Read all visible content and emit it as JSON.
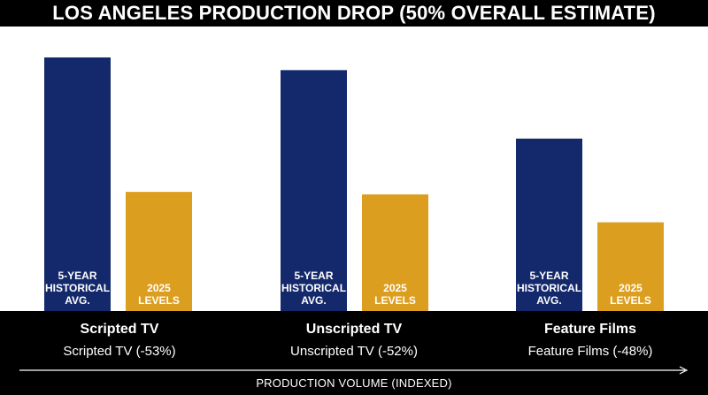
{
  "chart_data": {
    "type": "bar",
    "title": "LOS ANGELES PRODUCTION DROP (50% OVERALL ESTIMATE)",
    "xlabel": "PRODUCTION VOLUME (INDEXED)",
    "ylabel": "",
    "ylim": [
      0,
      100
    ],
    "categories": [
      "Scripted TV",
      "Unscripted TV",
      "Feature Films"
    ],
    "category_subtitles": [
      "Scripted TV (-53%)",
      "Unscripted TV (-52%)",
      "Feature Films (-48%)"
    ],
    "series": [
      {
        "name": "5-YEAR HISTORICAL AVG.",
        "label_lines": [
          "5-YEAR",
          "HISTORICAL",
          "AVG."
        ],
        "color": "#14296b",
        "values": [
          100,
          95,
          68
        ]
      },
      {
        "name": "2025 LEVELS",
        "label_lines": [
          "2025",
          "LEVELS"
        ],
        "color": "#dc9e1f",
        "values": [
          47,
          46,
          35
        ]
      }
    ],
    "grid": false,
    "legend": "none"
  }
}
